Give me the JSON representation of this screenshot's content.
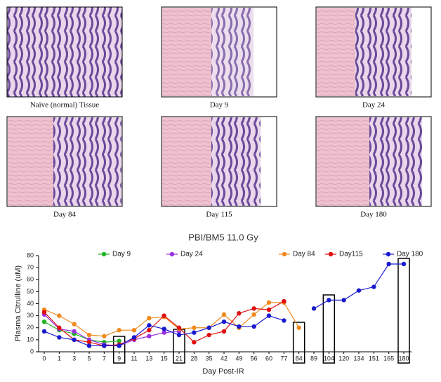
{
  "figure": {
    "panels": [
      {
        "caption": "Naïve (normal) Tissue"
      },
      {
        "caption": "Day 9"
      },
      {
        "caption": "Day 24"
      },
      {
        "caption": "Day 84"
      },
      {
        "caption": "Day 115"
      },
      {
        "caption": "Day 180"
      }
    ]
  },
  "chart_data": {
    "type": "line",
    "title": "PBI/BM5 11.0 Gy",
    "x_label": "Day Post-IR",
    "y_label": "Plasma Citrulline (uM)",
    "categories": [
      "0",
      "1",
      "3",
      "5",
      "7",
      "9",
      "11",
      "13",
      "15",
      "21",
      "28",
      "35",
      "42",
      "49",
      "56",
      "60",
      "77",
      "84",
      "89",
      "104",
      "120",
      "134",
      "151",
      "165",
      "180"
    ],
    "highlighted": [
      "9",
      "21",
      "84",
      "104",
      "180"
    ],
    "ylim": [
      0,
      80
    ],
    "yticks": [
      0,
      10,
      20,
      30,
      40,
      50,
      60,
      70,
      80
    ],
    "series": [
      {
        "name": "Day 9",
        "color": "#22b422",
        "values": [
          25,
          18,
          15,
          10,
          8,
          9,
          null,
          null,
          null,
          null,
          null,
          null,
          null,
          null,
          null,
          null,
          null,
          null,
          null,
          null,
          null,
          null,
          null,
          null,
          null
        ]
      },
      {
        "name": "Day 24",
        "color": "#9b30e0",
        "values": [
          31,
          19,
          17,
          10,
          6,
          5,
          10,
          13,
          16,
          17,
          null,
          null,
          null,
          null,
          null,
          null,
          null,
          null,
          null,
          null,
          null,
          null,
          null,
          null,
          null
        ]
      },
      {
        "name": "Day 84",
        "color": "#f08a1c",
        "values": [
          35,
          30,
          23,
          14,
          13,
          18,
          18,
          28,
          29,
          19,
          20,
          20,
          31,
          20,
          31,
          41,
          41,
          20,
          null,
          null,
          null,
          null,
          null,
          null,
          null
        ]
      },
      {
        "name": "Day115",
        "color": "#e01010",
        "values": [
          33,
          20,
          10,
          8,
          5,
          6,
          11,
          18,
          30,
          20,
          8,
          14,
          17,
          32,
          36,
          35,
          42,
          null,
          null,
          null,
          null,
          null,
          null,
          null,
          null
        ]
      },
      {
        "name": "Day 180",
        "color": "#1a1ad0",
        "values": [
          17,
          12,
          10,
          5,
          5,
          5,
          12,
          22,
          19,
          14,
          16,
          20,
          25,
          21,
          21,
          30,
          26,
          null,
          36,
          43,
          43,
          51,
          54,
          73,
          73
        ]
      }
    ]
  }
}
